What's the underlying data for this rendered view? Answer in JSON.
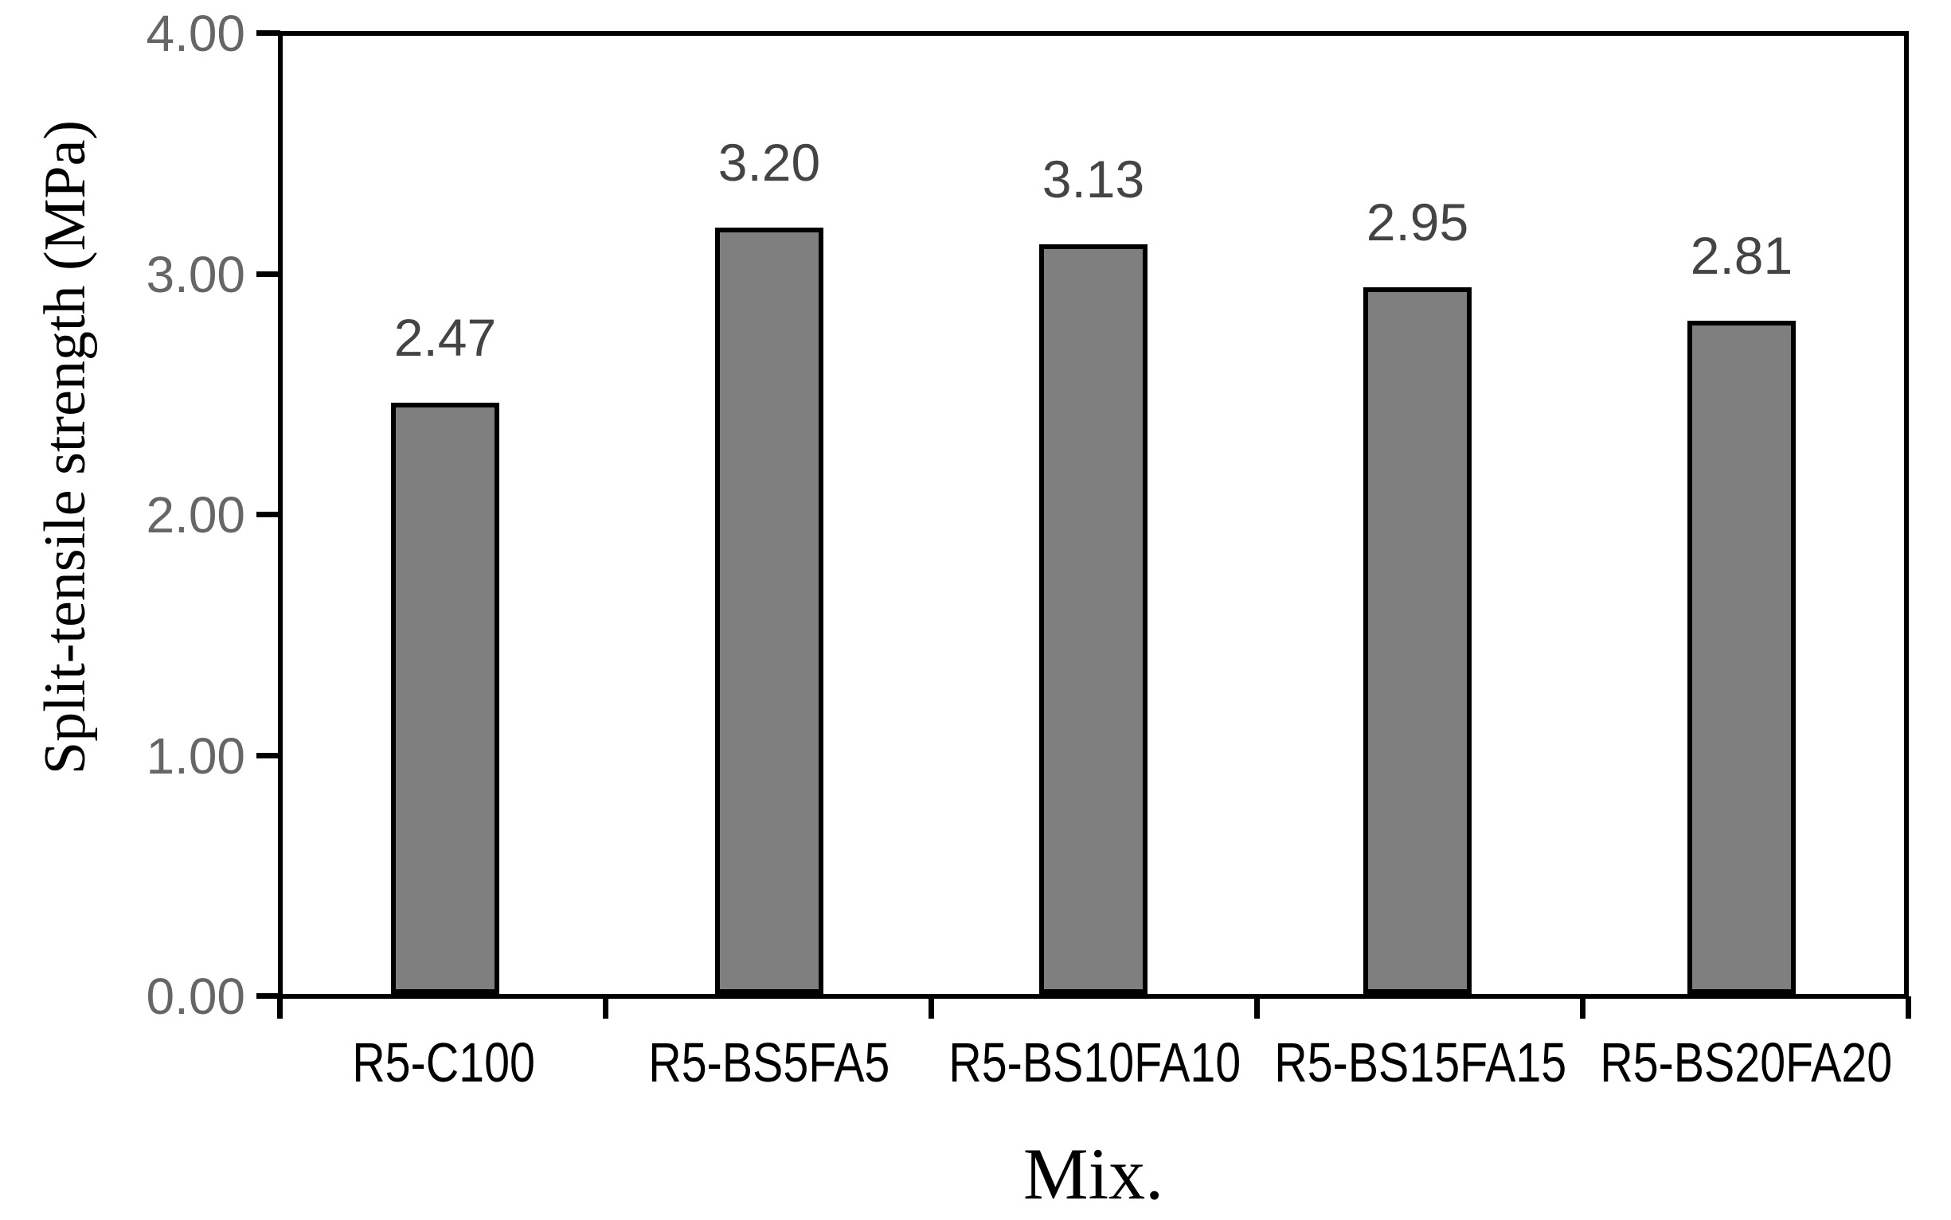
{
  "chart_data": {
    "type": "bar",
    "title": "",
    "xlabel": "Mix.",
    "ylabel": "Split-tensile strength (MPa)",
    "categories": [
      "R5-C100",
      "R5-BS5FA5",
      "R5-BS10FA10",
      "R5-BS15FA15",
      "R5-BS20FA20"
    ],
    "values": [
      2.47,
      3.2,
      3.13,
      2.95,
      2.81
    ],
    "value_labels": [
      "2.47",
      "3.20",
      "3.13",
      "2.95",
      "2.81"
    ],
    "ylim": [
      0,
      4
    ],
    "ytick_step": 1.0,
    "ytick_labels": [
      "0.00",
      "1.00",
      "2.00",
      "3.00",
      "4.00"
    ],
    "grid": false,
    "legend": "none",
    "colors": {
      "bar_fill": "#7F7F7F",
      "bar_border": "#000000",
      "axis_line": "#000000",
      "tick_label": "#666666",
      "data_label": "#444444",
      "category_label": "#000000"
    }
  }
}
